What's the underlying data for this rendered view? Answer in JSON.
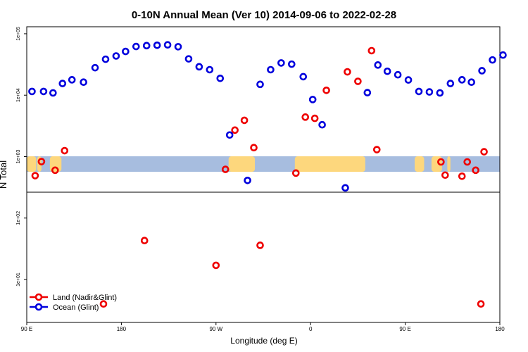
{
  "chart_data": {
    "type": "scatter",
    "title": "0-10N Annual Mean (Ver 10)   2014-09-06 to 2022-02-28",
    "xlabel": "Longitude (deg E)",
    "ylabel": "N Total",
    "x_ticks": [
      {
        "value": 90,
        "label": "90 E"
      },
      {
        "value": 180,
        "label": "180"
      },
      {
        "value": 270,
        "label": "90 W"
      },
      {
        "value": 360,
        "label": "0"
      },
      {
        "value": 450,
        "label": "90 E"
      },
      {
        "value": 540,
        "label": "180"
      }
    ],
    "xlim": [
      90,
      540
    ],
    "y_scale": "log",
    "ylim": [
      2.0,
      130000
    ],
    "y_ticks": [
      {
        "value": 10,
        "label": "1e+01"
      },
      {
        "value": 100,
        "label": "1e+02"
      },
      {
        "value": 1000,
        "label": "1e+03"
      },
      {
        "value": 10000,
        "label": "1e+04"
      },
      {
        "value": 100000,
        "label": "1e+05"
      }
    ],
    "legend_position": "bottom-left",
    "series": [
      {
        "name": "Land (Nadir&Glint)",
        "color": "#ee0000",
        "points": [
          [
            98,
            490
          ],
          [
            104,
            830
          ],
          [
            117,
            600
          ],
          [
            126,
            1250
          ],
          [
            163,
            4.0
          ],
          [
            202,
            43
          ],
          [
            270,
            17
          ],
          [
            279,
            620
          ],
          [
            288,
            2700
          ],
          [
            297,
            3900
          ],
          [
            306,
            1400
          ],
          [
            312,
            36
          ],
          [
            346,
            540
          ],
          [
            355,
            4400
          ],
          [
            364,
            4200
          ],
          [
            375,
            12000
          ],
          [
            395,
            24000
          ],
          [
            405,
            16800
          ],
          [
            418,
            53000
          ],
          [
            423,
            1300
          ],
          [
            484,
            820
          ],
          [
            488,
            500
          ],
          [
            504,
            480
          ],
          [
            509,
            820
          ],
          [
            517,
            600
          ],
          [
            525,
            1200
          ],
          [
            522,
            4.0
          ]
        ]
      },
      {
        "name": "Ocean (Glint)",
        "color": "#0000dd",
        "points": [
          [
            95,
            11500
          ],
          [
            106,
            11500
          ],
          [
            115,
            10900
          ],
          [
            124,
            15500
          ],
          [
            133,
            17800
          ],
          [
            144,
            16300
          ],
          [
            155,
            28000
          ],
          [
            165,
            38500
          ],
          [
            175,
            43500
          ],
          [
            184,
            51500
          ],
          [
            194,
            62000
          ],
          [
            204,
            64000
          ],
          [
            214,
            65000
          ],
          [
            224,
            66000
          ],
          [
            234,
            61500
          ],
          [
            244,
            39000
          ],
          [
            254,
            29000
          ],
          [
            264,
            26000
          ],
          [
            274,
            18800
          ],
          [
            283,
            2250
          ],
          [
            300,
            410
          ],
          [
            312,
            15000
          ],
          [
            322,
            26000
          ],
          [
            332,
            33500
          ],
          [
            342,
            32000
          ],
          [
            353,
            20000
          ],
          [
            362,
            8500
          ],
          [
            371,
            3300
          ],
          [
            393,
            310
          ],
          [
            414,
            11000
          ],
          [
            424,
            31000
          ],
          [
            433,
            24500
          ],
          [
            443,
            21500
          ],
          [
            453,
            17700
          ],
          [
            463,
            11500
          ],
          [
            473,
            11300
          ],
          [
            483,
            10900
          ],
          [
            493,
            15500
          ],
          [
            504,
            17800
          ],
          [
            513,
            16300
          ],
          [
            523,
            25000
          ],
          [
            533,
            37500
          ],
          [
            543,
            45000
          ]
        ]
      }
    ],
    "land": [
      {
        "from": 90,
        "to": 99
      },
      {
        "from": 100,
        "to": 104
      },
      {
        "from": 112,
        "to": 123
      },
      {
        "from": 282,
        "to": 307
      },
      {
        "from": 345,
        "to": 412
      },
      {
        "from": 459,
        "to": 468
      },
      {
        "from": 475,
        "to": 485
      },
      {
        "from": 490,
        "to": 493
      }
    ]
  }
}
